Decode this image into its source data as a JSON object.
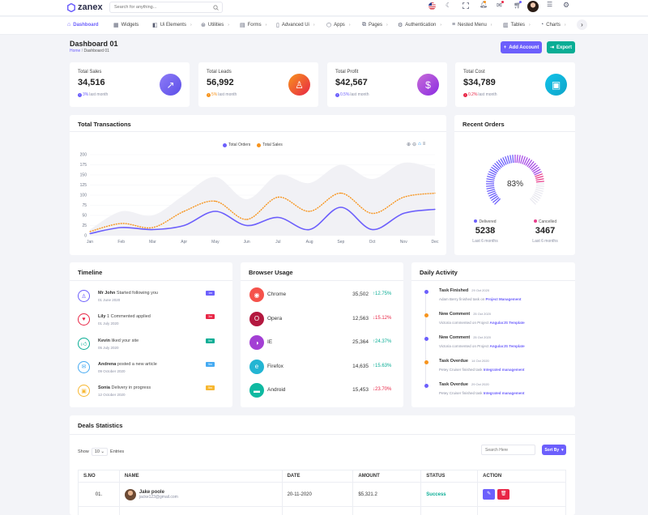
{
  "brand": {
    "name": "zanex"
  },
  "search": {
    "placeholder": "Search for anything..."
  },
  "nav": [
    {
      "label": "Dashboard",
      "icon": "home-icon"
    },
    {
      "label": "Widgets",
      "icon": "widgets-icon"
    },
    {
      "label": "Ui Elements",
      "icon": "ui-elements-icon"
    },
    {
      "label": "Utilities",
      "icon": "utilities-icon"
    },
    {
      "label": "Forms",
      "icon": "forms-icon"
    },
    {
      "label": "Advanced Ui",
      "icon": "advanced-ui-icon"
    },
    {
      "label": "Apps",
      "icon": "apps-icon"
    },
    {
      "label": "Pages",
      "icon": "pages-icon"
    },
    {
      "label": "Authentication",
      "icon": "authentication-icon"
    },
    {
      "label": "Nested Menu",
      "icon": "nested-menu-icon"
    },
    {
      "label": "Tables",
      "icon": "tables-icon"
    },
    {
      "label": "Charts",
      "icon": "charts-icon"
    }
  ],
  "page": {
    "title": "Dashboard 01",
    "crumb_home": "Home",
    "crumb_current": "Dashboard 01",
    "add_account": "Add Account",
    "export": "Export"
  },
  "stats": [
    {
      "label": "Total Sales",
      "value": "34,516",
      "change": "3%",
      "suffix": "last month",
      "trend": "up"
    },
    {
      "label": "Total Leads",
      "value": "56,992",
      "change": "5%",
      "suffix": "last month",
      "trend": "up"
    },
    {
      "label": "Total Profit",
      "value": "$42,567",
      "change": "0.5%",
      "suffix": "last month",
      "trend": "up"
    },
    {
      "label": "Total Cost",
      "value": "$34,789",
      "change": "0.2%",
      "suffix": "last month",
      "trend": "down"
    }
  ],
  "transactions": {
    "title": "Total Transactions"
  },
  "chart_data": {
    "type": "line",
    "categories": [
      "Jan",
      "Feb",
      "Mar",
      "Apr",
      "May",
      "Jun",
      "Jul",
      "Aug",
      "Sep",
      "Oct",
      "Nov",
      "Dec"
    ],
    "ylim": [
      0,
      200
    ],
    "yticks": [
      0,
      25,
      50,
      75,
      100,
      125,
      150,
      175,
      200
    ],
    "series": [
      {
        "name": "Total Orders",
        "color": "#6c5ffc",
        "values": [
          5,
          20,
          15,
          25,
          60,
          25,
          45,
          15,
          70,
          15,
          55,
          65
        ]
      },
      {
        "name": "Total Sales",
        "color": "#f7941d",
        "values": [
          10,
          30,
          20,
          60,
          85,
          40,
          95,
          60,
          105,
          55,
          95,
          105
        ]
      }
    ],
    "background_values": [
      15,
      60,
      50,
      100,
      145,
      90,
      150,
      130,
      175,
      140,
      180,
      165
    ]
  },
  "orders": {
    "title": "Recent Orders",
    "percent": "83%",
    "percent_value": 0.83,
    "delivered_label": "Delivered",
    "delivered_value": "5238",
    "delivered_sub": "Last 6 months",
    "cancelled_label": "Cancelled",
    "cancelled_value": "3467",
    "cancelled_sub": "Last 6 months"
  },
  "timeline": {
    "title": "Timeline",
    "items": [
      {
        "who": "Mr John",
        "text": "Started following you",
        "date": "01 June 2020",
        "badge": "1m",
        "color": "#6c5ffc",
        "icon": "user-icon"
      },
      {
        "who": "Lily",
        "text": "1 Commented applied",
        "date": "01 July 2020",
        "badge": "3m",
        "color": "#e82646",
        "icon": "heart-icon"
      },
      {
        "who": "Kevin",
        "text": "liked your site",
        "date": "05 July 2020",
        "badge": "5m",
        "color": "#09ad95",
        "icon": "thumbs-up-icon"
      },
      {
        "who": "Andrena",
        "text": "posted a new article",
        "date": "09 October 2020",
        "badge": "5m",
        "color": "#45aaf2",
        "icon": "mail-icon"
      },
      {
        "who": "Sonia",
        "text": "Delivery in progress",
        "date": "12 October 2020",
        "badge": "5m",
        "color": "#f7b731",
        "icon": "bag-icon"
      }
    ]
  },
  "browsers": {
    "title": "Browser Usage",
    "items": [
      {
        "name": "Chrome",
        "value": "35,502",
        "pct": "12.75%",
        "trend": "up",
        "color": "#f5524b",
        "icon": "chrome-icon"
      },
      {
        "name": "Opera",
        "value": "12,563",
        "pct": "15.12%",
        "trend": "down",
        "color": "#b3183f",
        "icon": "opera-icon"
      },
      {
        "name": "IE",
        "value": "25,364",
        "pct": "24.37%",
        "trend": "up",
        "color": "#a33fd4",
        "icon": "ie-icon"
      },
      {
        "name": "Firefox",
        "value": "14,635",
        "pct": "15.63%",
        "trend": "up",
        "color": "#23b5d3",
        "icon": "firefox-icon"
      },
      {
        "name": "Android",
        "value": "15,453",
        "pct": "23.70%",
        "trend": "down",
        "color": "#0fb9a1",
        "icon": "android-icon"
      }
    ]
  },
  "activity": {
    "title": "Daily Activity",
    "items": [
      {
        "title": "Task Finished",
        "date": "29 Oct 2020",
        "text": "Adam Berry finished task on",
        "link": "Project Management",
        "color": "#6c5ffc"
      },
      {
        "title": "New Comment",
        "date": "25 Oct 2020",
        "text": "Victoria commented on Project",
        "link": "AngularJS Template",
        "color": "#f7941d"
      },
      {
        "title": "New Comment",
        "date": "25 Oct 2020",
        "text": "Victoria commented on Project",
        "link": "AngularJS Template",
        "color": "#6c5ffc"
      },
      {
        "title": "Task Overdue",
        "date": "14 Oct 2020",
        "text": "Petey Cruiser finished task",
        "link": "Integrated management",
        "color": "#f7941d"
      },
      {
        "title": "Task Overdue",
        "date": "29 Oct 2020",
        "text": "Petey Cruiser finished task",
        "link": "Integrated management",
        "color": "#6c5ffc"
      }
    ]
  },
  "deals": {
    "title": "Deals Statistics",
    "show": "Show",
    "entries_value": "10",
    "entries": "Entries",
    "search_placeholder": "Search Here",
    "sort_by": "Sort By",
    "columns": [
      "S.NO",
      "NAME",
      "DATE",
      "AMOUNT",
      "STATUS",
      "ACTION"
    ],
    "rows": [
      {
        "no": "01.",
        "name": "Jake poole",
        "email": "jacke123@gmail.com",
        "date": "20-11-2020",
        "amount": "$5,321.2",
        "status": "Success"
      }
    ]
  }
}
